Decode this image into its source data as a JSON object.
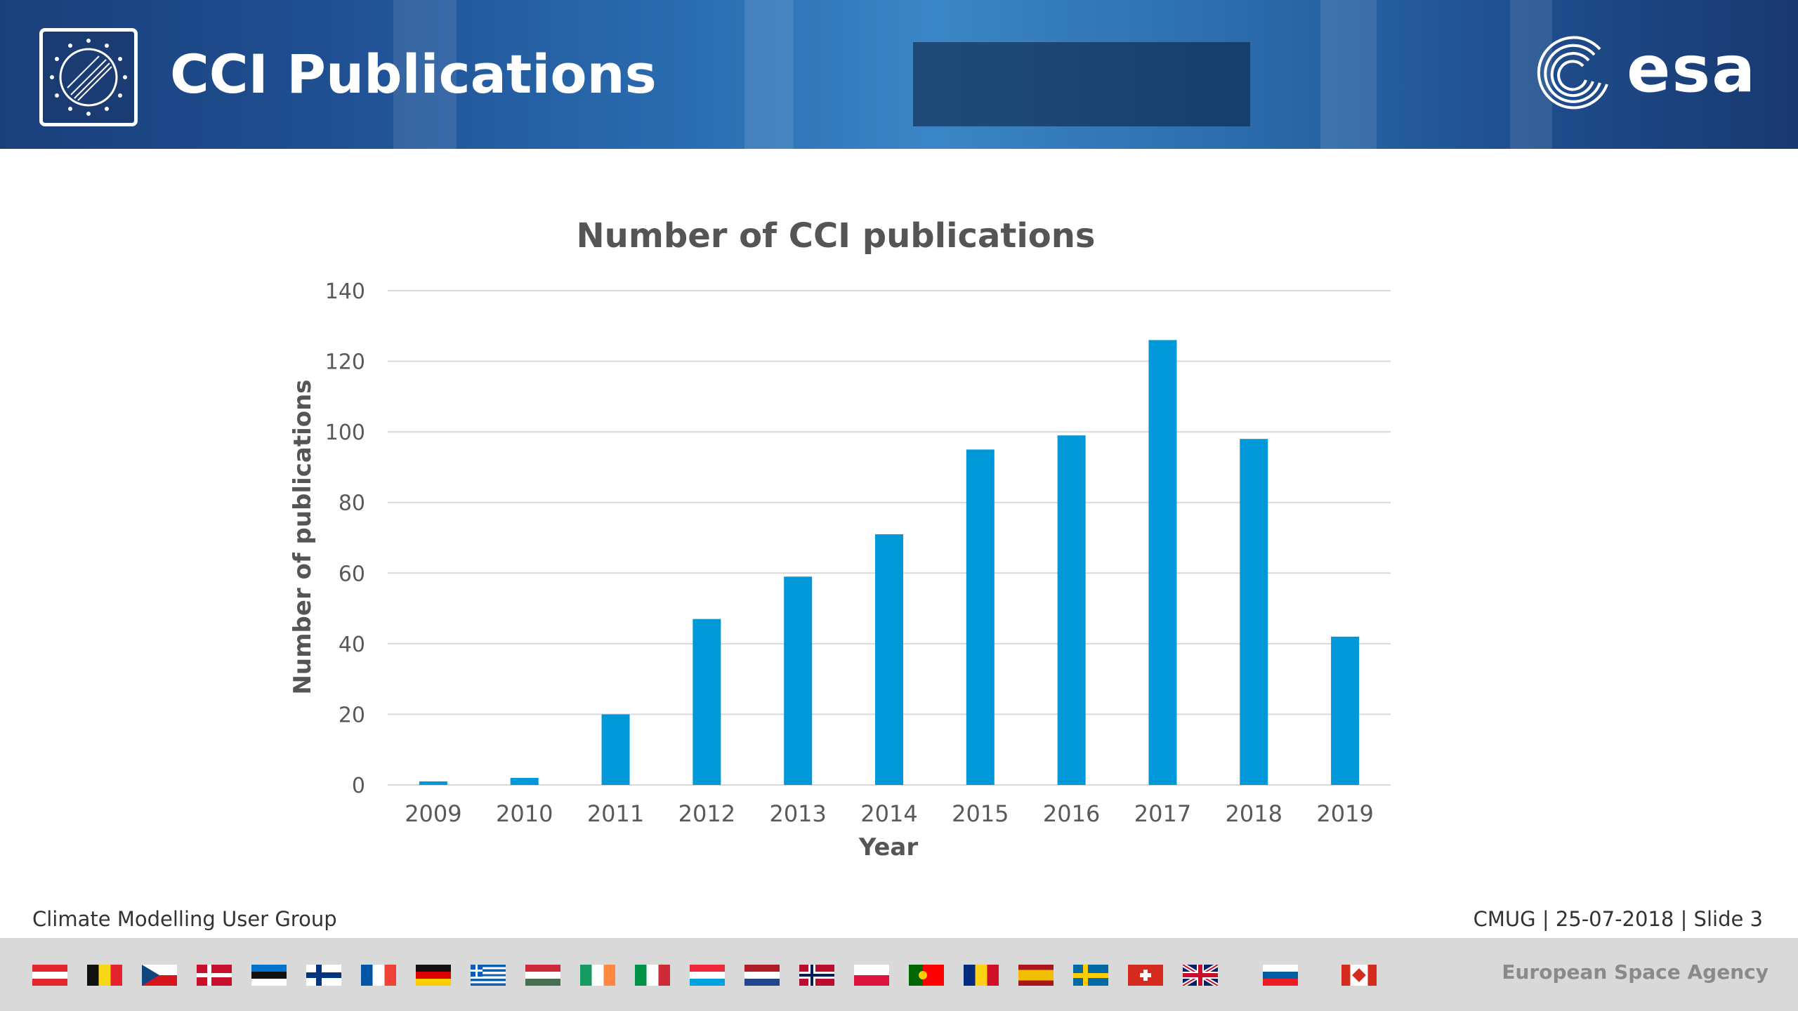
{
  "header": {
    "title": "CCI Publications",
    "esa_logo_text": "esa",
    "logo_icon": "cci-globe-icon"
  },
  "chart_data": {
    "type": "bar",
    "title": "Number of CCI publications",
    "xlabel": "Year",
    "ylabel": "Number of publications",
    "categories": [
      "2009",
      "2010",
      "2011",
      "2012",
      "2013",
      "2014",
      "2015",
      "2016",
      "2017",
      "2018",
      "2019"
    ],
    "values": [
      1,
      2,
      20,
      47,
      59,
      71,
      95,
      99,
      126,
      98,
      42
    ],
    "ylim": [
      0,
      140
    ],
    "yticks": [
      "0",
      "20",
      "40",
      "60",
      "80",
      "100",
      "120",
      "140"
    ],
    "grid": true,
    "bar_color": "#0098d8"
  },
  "footer": {
    "left": "Climate Modelling User Group",
    "right": "CMUG | 25-07-2018 | Slide  3",
    "agency": "European Space Agency"
  },
  "flags": [
    "austria-flag",
    "belgium-flag",
    "czech-flag",
    "denmark-flag",
    "estonia-flag",
    "finland-flag",
    "france-flag",
    "germany-flag",
    "greece-flag",
    "hungary-flag",
    "ireland-flag",
    "italy-flag",
    "luxembourg-flag",
    "netherlands-flag",
    "norway-flag",
    "poland-flag",
    "portugal-flag",
    "romania-flag",
    "spain-flag",
    "sweden-flag",
    "switzerland-flag",
    "uk-flag",
    "slovenia-flag",
    "canada-flag"
  ]
}
